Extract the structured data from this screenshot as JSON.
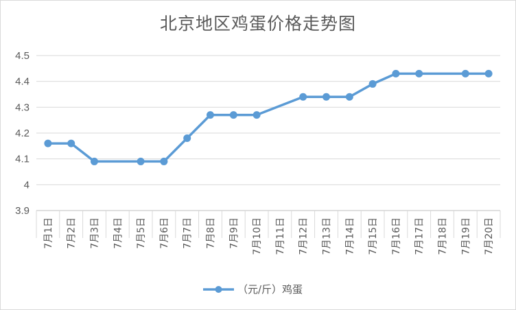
{
  "chart_data": {
    "type": "line",
    "title": "北京地区鸡蛋价格走势图",
    "categories": [
      "7月1日",
      "7月2日",
      "7月3日",
      "7月4日",
      "7月5日",
      "7月6日",
      "7月7日",
      "7月8日",
      "7月9日",
      "7月10日",
      "7月11日",
      "7月12日",
      "7月13日",
      "7月14日",
      "7月15日",
      "7月16日",
      "7月17日",
      "7月18日",
      "7月19日",
      "7月20日"
    ],
    "series": [
      {
        "name": "（元/斤）鸡蛋",
        "values": [
          4.16,
          4.16,
          4.09,
          null,
          4.09,
          4.09,
          4.18,
          4.27,
          4.27,
          4.27,
          null,
          4.34,
          4.34,
          4.34,
          4.39,
          4.43,
          4.43,
          null,
          4.43,
          4.43
        ],
        "color": "#5b9bd5"
      }
    ],
    "yticks": [
      "3.9",
      "4",
      "4.1",
      "4.2",
      "4.3",
      "4.4",
      "4.5"
    ],
    "ylim": [
      3.9,
      4.5
    ],
    "grid": true,
    "legend": "bottom"
  }
}
